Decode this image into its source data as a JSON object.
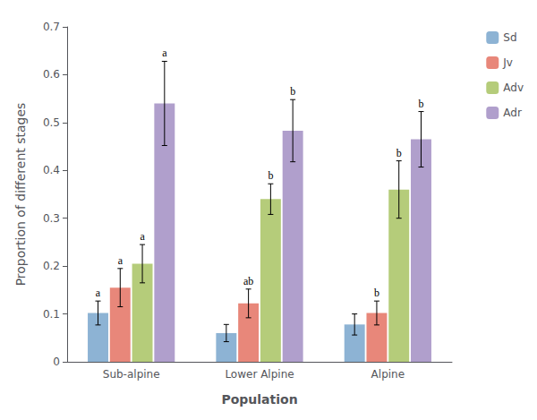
{
  "chart_data": {
    "type": "bar",
    "categories": [
      "Sub-alpine",
      "Lower Alpine",
      "Alpine"
    ],
    "xlabel": "Population",
    "ylabel": "Proportion of different stages",
    "ylim": [
      0,
      0.7
    ],
    "yticks": [
      0,
      0.1,
      0.2,
      0.3,
      0.4,
      0.5,
      0.6,
      0.7
    ],
    "grid": false,
    "legend": "right",
    "series": [
      {
        "name": "Sd",
        "color": "#8db3d4",
        "values": [
          0.102,
          0.06,
          0.078
        ],
        "errors": [
          0.025,
          0.018,
          0.022
        ],
        "sig_labels": [
          "a",
          null,
          null
        ]
      },
      {
        "name": "Jv",
        "color": "#e8877a",
        "values": [
          0.155,
          0.122,
          0.102
        ],
        "errors": [
          0.04,
          0.03,
          0.025
        ],
        "sig_labels": [
          "a",
          "ab",
          "b"
        ]
      },
      {
        "name": "Adv",
        "color": "#b5cc7a",
        "values": [
          0.205,
          0.34,
          0.36
        ],
        "errors": [
          0.04,
          0.032,
          0.06
        ],
        "sig_labels": [
          "a",
          "b",
          "b"
        ]
      },
      {
        "name": "Adr",
        "color": "#b09fcc",
        "values": [
          0.54,
          0.483,
          0.465
        ],
        "errors": [
          0.088,
          0.065,
          0.058
        ],
        "sig_labels": [
          "a",
          "b",
          "b"
        ]
      }
    ]
  }
}
